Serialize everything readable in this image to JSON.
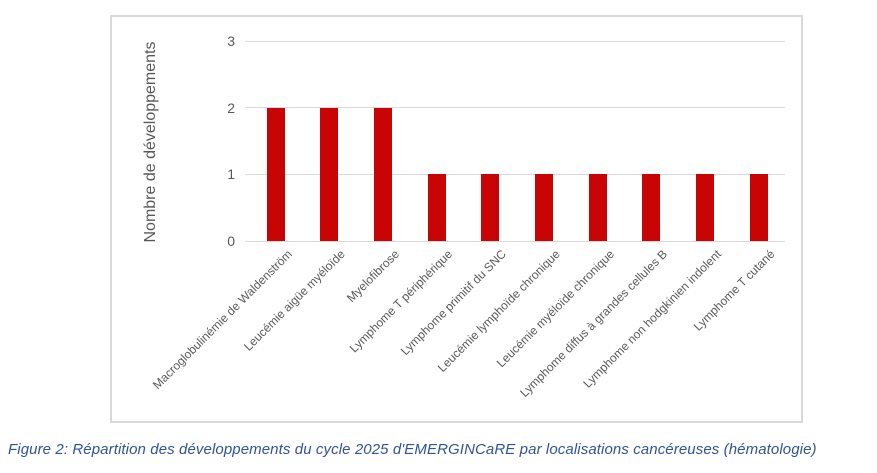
{
  "caption": "Figure 2: Répartition des développements du cycle 2025 d'EMERGINCaRE par localisations cancéreuses (hématologie)",
  "chart_data": {
    "type": "bar",
    "title": "",
    "xlabel": "",
    "ylabel": "Nombre de développements",
    "categories": [
      "Macroglobulinémie de Waldenström",
      "Leucémie aigüe myéloïde",
      "Myelofibrose",
      "Lymphome T périphérique",
      "Lymphome primitif du SNC",
      "Leucémie lymphoïde chronique",
      "Leucémie myéloïde chronique",
      "Lymphome diffus à grandes cellules B",
      "Lymphome non hodgkinien indolent",
      "Lymphome T cutané"
    ],
    "values": [
      2,
      2,
      2,
      1,
      1,
      1,
      1,
      1,
      1,
      1
    ],
    "yticks": [
      0,
      1,
      2,
      3
    ],
    "ylim": [
      0,
      3
    ],
    "grid": true,
    "legend": "none",
    "bar_color": "#C90404",
    "axis_text_color": "#595959",
    "gridline_color": "#D9D9D9",
    "caption_color": "#2F5496"
  }
}
